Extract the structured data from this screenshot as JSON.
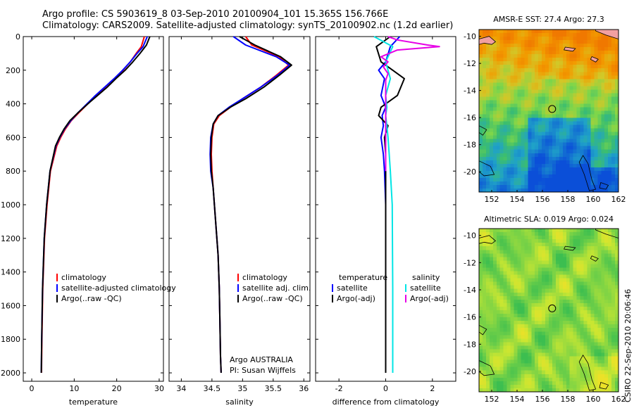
{
  "header": {
    "line1": "Argo profile: CS 5903619_8 03-Sep-2010 20100904_101 15.365S 156.766E",
    "line2": "Climatology: CARS2009. Satellite-adjusted climatology: synTS_20100902.nc (1.2d earlier)"
  },
  "footer": {
    "credit": "CSIRO 22-Sep-2010 20:06:46"
  },
  "chart_data": [
    {
      "type": "line",
      "xlabel": "temperature",
      "ylim": [
        2050,
        0
      ],
      "xlim": [
        -2,
        31
      ],
      "xticks": [
        "0",
        "10",
        "20",
        "30"
      ],
      "yticks": [
        "0",
        "200",
        "400",
        "600",
        "800",
        "1000",
        "1200",
        "1400",
        "1600",
        "1800",
        "2000"
      ],
      "legend": [
        "climatology",
        "satellite-adjusted climatology",
        "Argo(..raw -QC)"
      ],
      "legend_colors": [
        "#ff0000",
        "#0000ff",
        "#000000"
      ],
      "series": [
        {
          "name": "climatology",
          "color": "#ff0000",
          "x": [
            26.5,
            25.8,
            24.6,
            23.2,
            21.5,
            19.4,
            17.3,
            15.2,
            13.2,
            11.2,
            9.3,
            7.9,
            6.8,
            5.9,
            4.4,
            3.6,
            3.0,
            2.6,
            2.4,
            2.3
          ],
          "y": [
            0,
            60,
            100,
            150,
            200,
            250,
            300,
            350,
            400,
            450,
            500,
            550,
            600,
            650,
            800,
            1000,
            1200,
            1500,
            1800,
            2000
          ]
        },
        {
          "name": "satellite-adjusted climatology",
          "color": "#0000ff",
          "x": [
            27.2,
            26.2,
            24.8,
            23.2,
            21.4,
            19.4,
            17.2,
            15.0,
            13.0,
            11.0,
            9.2,
            7.7,
            6.6,
            5.7,
            4.3,
            3.5,
            2.95,
            2.55,
            2.35,
            2.25
          ],
          "y": [
            0,
            60,
            100,
            150,
            200,
            250,
            300,
            350,
            400,
            450,
            500,
            550,
            600,
            650,
            800,
            1000,
            1200,
            1500,
            1800,
            2000
          ]
        },
        {
          "name": "Argo(..raw -QC)",
          "color": "#000000",
          "x": [
            27.8,
            27.0,
            25.5,
            23.8,
            22.0,
            19.8,
            17.8,
            15.5,
            13.2,
            11.0,
            9.0,
            7.6,
            6.5,
            5.6,
            4.3,
            3.5,
            2.95,
            2.55,
            2.35,
            2.25
          ],
          "y": [
            0,
            50,
            100,
            150,
            200,
            250,
            300,
            350,
            400,
            450,
            500,
            550,
            600,
            650,
            800,
            1000,
            1200,
            1500,
            1800,
            2000
          ]
        }
      ]
    },
    {
      "type": "line",
      "xlabel": "salinity",
      "ylim": [
        2050,
        0
      ],
      "xlim": [
        33.8,
        36.1
      ],
      "xticks": [
        "34",
        "34.5",
        "35",
        "35.5",
        "36"
      ],
      "legend": [
        "climatology",
        "satellite adj. clim.",
        "Argo(..raw -QC)"
      ],
      "legend_colors": [
        "#ff0000",
        "#0000ff",
        "#000000"
      ],
      "annotation": [
        "Argo AUSTRALIA",
        "PI: Susan Wijffels"
      ],
      "series": [
        {
          "name": "climatology",
          "color": "#ff0000",
          "x": [
            35.05,
            35.15,
            35.6,
            35.75,
            35.55,
            35.3,
            35.0,
            34.8,
            34.62,
            34.53,
            34.5,
            34.49,
            34.5,
            34.52,
            34.56,
            34.6,
            34.62,
            34.63,
            34.64,
            34.65
          ],
          "y": [
            0,
            50,
            120,
            170,
            230,
            300,
            370,
            420,
            470,
            520,
            600,
            700,
            800,
            900,
            1100,
            1300,
            1500,
            1700,
            1900,
            2000
          ]
        },
        {
          "name": "satellite adj. clim.",
          "color": "#0000ff",
          "x": [
            34.85,
            35.05,
            35.55,
            35.77,
            35.57,
            35.3,
            35.0,
            34.78,
            34.6,
            34.52,
            34.48,
            34.47,
            34.48,
            34.52,
            34.56,
            34.6,
            34.62,
            34.63,
            34.64,
            34.65
          ],
          "y": [
            0,
            50,
            120,
            170,
            230,
            300,
            370,
            420,
            470,
            520,
            600,
            700,
            800,
            900,
            1100,
            1300,
            1500,
            1700,
            1900,
            2000
          ]
        },
        {
          "name": "Argo(..raw -QC)",
          "color": "#000000",
          "x": [
            34.95,
            35.2,
            35.62,
            35.8,
            35.6,
            35.35,
            35.05,
            34.8,
            34.6,
            34.52,
            34.49,
            34.48,
            34.49,
            34.52,
            34.56,
            34.6,
            34.62,
            34.63,
            34.64,
            34.65
          ],
          "y": [
            0,
            50,
            120,
            170,
            230,
            300,
            370,
            420,
            470,
            520,
            600,
            700,
            800,
            900,
            1100,
            1300,
            1500,
            1700,
            1900,
            2000
          ]
        }
      ]
    },
    {
      "type": "line",
      "xlabel": "difference from climatology",
      "ylim": [
        2050,
        0
      ],
      "xlim": [
        -3.0,
        3.0
      ],
      "xticks": [
        "-2",
        "0",
        "2"
      ],
      "legend_left": {
        "heading": "temperature",
        "items": [
          "satellite",
          "Argo(-adj)"
        ],
        "colors": [
          "#0000ff",
          "#000000"
        ]
      },
      "legend_right": {
        "heading": "salinity",
        "items": [
          "satellite",
          "Argo(-adj)"
        ],
        "colors": [
          "#00e5e5",
          "#e600e6"
        ]
      },
      "series": [
        {
          "name": "satellite",
          "color": "#0000ff",
          "x": [
            0.6,
            0.2,
            0.0,
            -0.3,
            -0.05,
            -0.2,
            0.0,
            -0.15,
            -0.1,
            -0.2,
            -0.1,
            -0.05,
            0.0,
            0.0,
            0.0
          ],
          "y": [
            0,
            60,
            150,
            200,
            250,
            350,
            420,
            470,
            530,
            600,
            700,
            800,
            1000,
            1500,
            2000
          ]
        },
        {
          "name": "Argo(-adj)",
          "color": "#000000",
          "x": [
            0.2,
            -0.4,
            -0.2,
            0.3,
            0.8,
            0.5,
            -0.2,
            -0.3,
            0.1,
            -0.05,
            0.0,
            0.0,
            0.0,
            0.0,
            0.0
          ],
          "y": [
            0,
            60,
            150,
            200,
            250,
            350,
            420,
            470,
            530,
            600,
            700,
            800,
            1000,
            1500,
            2000
          ]
        },
        {
          "name": "satellite",
          "color": "#00e5e5",
          "x": [
            -0.5,
            0.3,
            0.0,
            0.1,
            0.2,
            0.0,
            0.05,
            0.0,
            0.05,
            0.1,
            0.15,
            0.2,
            0.28,
            0.3,
            0.3
          ],
          "y": [
            0,
            60,
            150,
            200,
            250,
            350,
            420,
            470,
            530,
            600,
            700,
            800,
            1000,
            1500,
            2000
          ]
        },
        {
          "name": "Argo(-adj)",
          "color": "#e600e6",
          "x": [
            0.1,
            0.5,
            1.8,
            2.3,
            0.5,
            -0.2,
            0.1,
            -0.1,
            0.1,
            0.0,
            0.0,
            0.0,
            0.0,
            0.0,
            0.0
          ],
          "y": [
            0,
            20,
            50,
            60,
            80,
            120,
            150,
            180,
            220,
            260,
            300,
            350,
            400,
            600,
            800
          ]
        }
      ]
    },
    {
      "type": "heatmap",
      "title": "AMSR-E SST: 27.4 Argo: 27.3",
      "xlim": [
        151,
        162
      ],
      "ylim": [
        -21.5,
        -9.5
      ],
      "xticks": [
        "152",
        "154",
        "156",
        "158",
        "160",
        "162"
      ],
      "yticks": [
        "-10",
        "-12",
        "-14",
        "-16",
        "-18",
        "-20"
      ],
      "argo_position": [
        156.766,
        -15.365
      ],
      "colors": {
        "warm": "#f29b00",
        "mid": "#7fd64a",
        "cool": "#1fa2c8",
        "cold": "#0b4fd8",
        "land": "#f2a0a0"
      }
    },
    {
      "type": "heatmap",
      "title": "Altimetric SLA: 0.019 Argo: 0.024",
      "xlim": [
        151,
        162
      ],
      "ylim": [
        -21.5,
        -9.5
      ],
      "xticks": [
        "152",
        "154",
        "156",
        "158",
        "160",
        "162"
      ],
      "yticks": [
        "-10",
        "-12",
        "-14",
        "-16",
        "-18",
        "-20"
      ],
      "argo_position": [
        156.766,
        -15.365
      ],
      "colors": {
        "high": "#cfe73a",
        "mid": "#8ed54a",
        "low": "#4fc45a",
        "land": "#f2a0a0"
      }
    }
  ]
}
